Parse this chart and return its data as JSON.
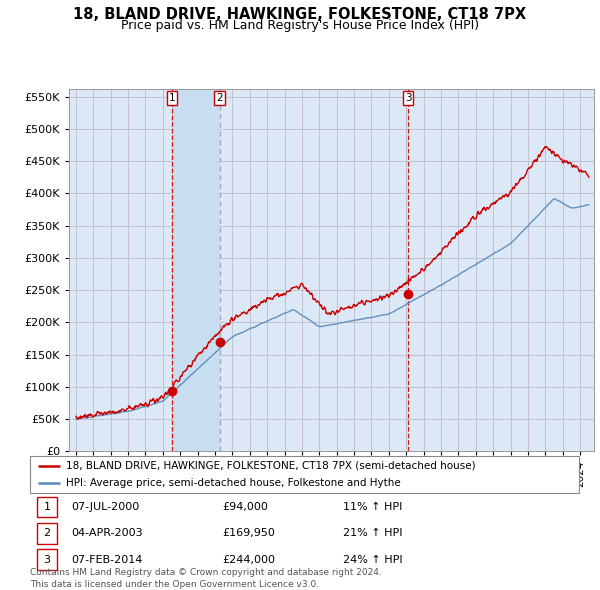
{
  "title": "18, BLAND DRIVE, HAWKINGE, FOLKESTONE, CT18 7PX",
  "subtitle": "Price paid vs. HM Land Registry's House Price Index (HPI)",
  "ylim": [
    0,
    562500
  ],
  "yticks": [
    0,
    50000,
    100000,
    150000,
    200000,
    250000,
    300000,
    350000,
    400000,
    450000,
    500000,
    550000
  ],
  "legend_line1": "18, BLAND DRIVE, HAWKINGE, FOLKESTONE, CT18 7PX (semi-detached house)",
  "legend_line2": "HPI: Average price, semi-detached house, Folkestone and Hythe",
  "transactions": [
    {
      "num": 1,
      "date": "07-JUL-2000",
      "price": 94000,
      "pct": "11%",
      "dir": "↑",
      "x": 2000.52,
      "linestyle": "dashed_red"
    },
    {
      "num": 2,
      "date": "04-APR-2003",
      "price": 169950,
      "pct": "21%",
      "dir": "↑",
      "x": 2003.27,
      "linestyle": "dashed_blue"
    },
    {
      "num": 3,
      "date": "07-FEB-2014",
      "price": 244000,
      "pct": "24%",
      "dir": "↑",
      "x": 2014.1,
      "linestyle": "dashed_red"
    }
  ],
  "footer1": "Contains HM Land Registry data © Crown copyright and database right 2024.",
  "footer2": "This data is licensed under the Open Government Licence v3.0.",
  "red_color": "#cc0000",
  "blue_color": "#5588bb",
  "bg_color": "#ffffff",
  "grid_color": "#cccccc",
  "plot_bg": "#dce8f5",
  "shade_color": "#c8ddf0"
}
